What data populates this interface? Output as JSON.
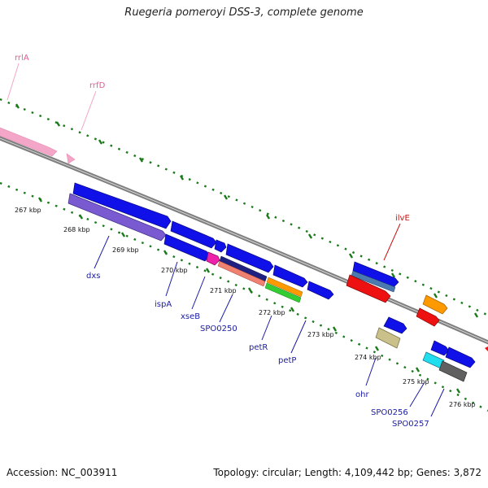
{
  "title": "Ruegeria pomeroyi DSS-3, complete genome",
  "footer": {
    "accession": "Accession: NC_003911",
    "summary": "Topology: circular; Length: 4,109,442 bp; Genes: 3,872"
  },
  "ticks": [
    "267 kbp",
    "268 kbp",
    "269 kbp",
    "270 kbp",
    "271 kbp",
    "272 kbp",
    "273 kbp",
    "274 kbp",
    "275 kbp",
    "276 kbp"
  ],
  "labels": {
    "rrlA": "rrlA",
    "rrfD": "rrfD",
    "dxs": "dxs",
    "ispA": "ispA",
    "xseB": "xseB",
    "SPO0250": "SPO0250",
    "petR": "petR",
    "petP": "petP",
    "ohr": "ohr",
    "ilvE": "ilvE",
    "SPO0256": "SPO0256",
    "SPO0257": "SPO0257"
  },
  "colors": {
    "backbone": "#7f7f7f",
    "tick_dots": "#1a7a1a",
    "gene": "#1010e8",
    "rrna": "#f4a6c8",
    "ilvE": "#ee1111"
  }
}
